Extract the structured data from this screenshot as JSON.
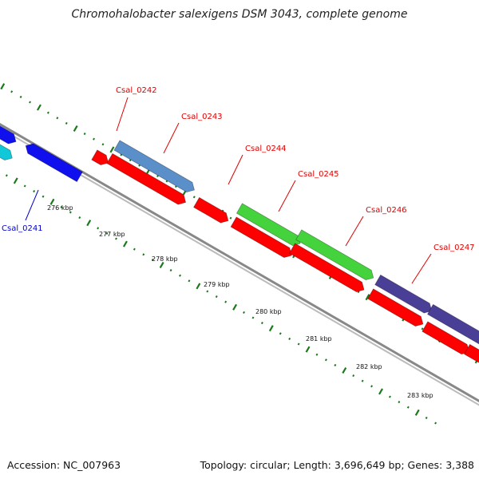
{
  "title": "Chromohalobacter salexigens DSM 3043, complete genome",
  "footer": {
    "accession": "Accession: NC_007963",
    "topology": "Topology: circular; Length: 3,696,649 bp; Genes: 3,388"
  },
  "colors": {
    "label_red": "#dd0000",
    "label_blue": "#0000cc",
    "tick_green": "#1a7a1a",
    "backbone": "#999999",
    "red_gene": "#ff0000",
    "steelblue_gene": "#5b8fc9",
    "green_gene": "#44d33c",
    "navy_gene": "#4a3f96",
    "blue_gene": "#1010ee",
    "cyan_gene": "#10c8d8"
  },
  "ticks": [
    {
      "kbp": 276,
      "label": "276 kbp"
    },
    {
      "kbp": 277,
      "label": "277 kbp"
    },
    {
      "kbp": 278,
      "label": "278 kbp"
    },
    {
      "kbp": 279,
      "label": "279 kbp"
    },
    {
      "kbp": 280,
      "label": "280 kbp"
    },
    {
      "kbp": 281,
      "label": "281 kbp"
    },
    {
      "kbp": 282,
      "label": "282 kbp"
    },
    {
      "kbp": 283,
      "label": "283 kbp"
    }
  ],
  "gene_labels": [
    {
      "name": "Csal_0241",
      "color": "blue"
    },
    {
      "name": "Csal_0242",
      "color": "red"
    },
    {
      "name": "Csal_0243",
      "color": "red"
    },
    {
      "name": "Csal_0244",
      "color": "red"
    },
    {
      "name": "Csal_0245",
      "color": "red"
    },
    {
      "name": "Csal_0246",
      "color": "red"
    },
    {
      "name": "Csal_0247",
      "color": "red"
    }
  ]
}
